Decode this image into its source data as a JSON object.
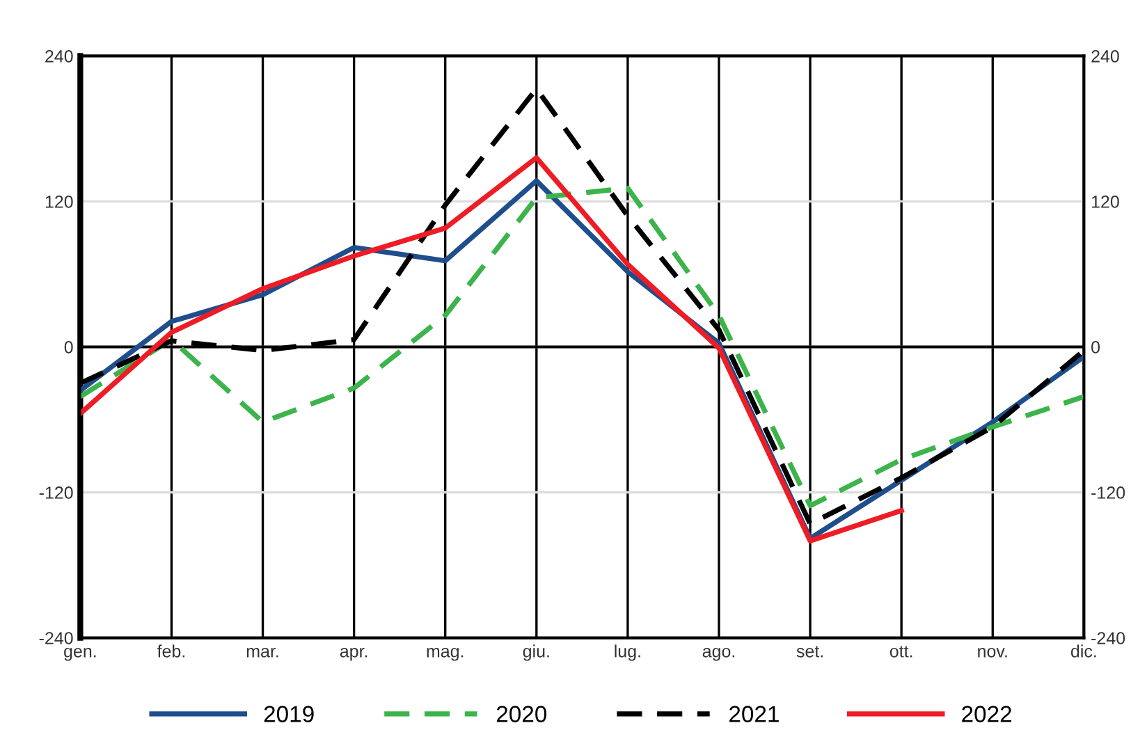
{
  "chart_data": {
    "type": "line",
    "categories": [
      "gen.",
      "feb.",
      "mar.",
      "apr.",
      "mag.",
      "giu.",
      "lug.",
      "ago.",
      "set.",
      "ott.",
      "nov.",
      "dic."
    ],
    "series": [
      {
        "name": "2019",
        "color": "#1f4e8c",
        "line_style": "solid",
        "values": [
          -36,
          21,
          43,
          82,
          71,
          137,
          62,
          3,
          -158,
          -110,
          -62,
          -8
        ]
      },
      {
        "name": "2020",
        "color": "#3cb44b",
        "line_style": "dashed",
        "values": [
          -41,
          6,
          -62,
          -34,
          26,
          123,
          131,
          26,
          -131,
          -93,
          -66,
          -41
        ]
      },
      {
        "name": "2021",
        "color": "#000000",
        "line_style": "dashed",
        "values": [
          -30,
          5,
          -3,
          6,
          117,
          213,
          108,
          14,
          -146,
          -108,
          -66,
          -3
        ]
      },
      {
        "name": "2022",
        "color": "#ee1c25",
        "line_style": "solid",
        "values": [
          -55,
          12,
          48,
          75,
          98,
          156,
          68,
          -1,
          -160,
          -135,
          null,
          null
        ]
      }
    ],
    "ylim": [
      -240,
      240
    ],
    "yticks": [
      -240,
      -120,
      0,
      120,
      240
    ],
    "y2lim": [
      -240,
      240
    ],
    "y2ticks": [
      -240,
      -120,
      0,
      120,
      240
    ],
    "ref_lines": [
      {
        "axis": "y",
        "value": 0,
        "color": "#000000"
      }
    ],
    "grid": true,
    "legend": "bottom",
    "marker": "none"
  }
}
